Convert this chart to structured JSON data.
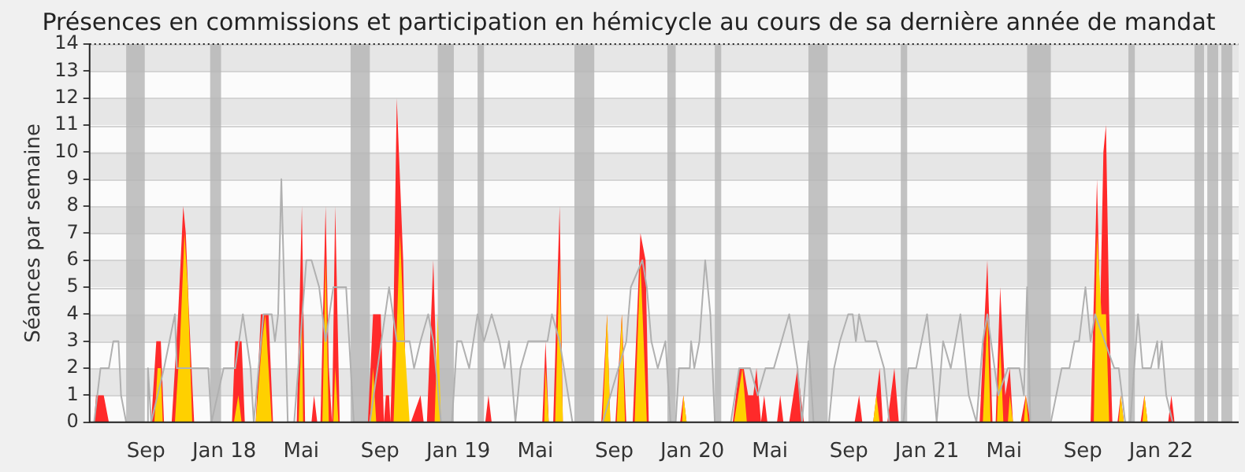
{
  "chart_data": {
    "type": "area",
    "title": "Présences en commissions et participation en hémicycle au cours de sa dernière année de mandat",
    "ylabel": "Séances par semaine",
    "xlim": [
      "2017-06-05",
      "2022-05-02"
    ],
    "xticks": [
      {
        "value": "2017-09-01",
        "label": "Sep"
      },
      {
        "value": "2018-01-01",
        "label": "Jan 18"
      },
      {
        "value": "2018-05-01",
        "label": "Mai"
      },
      {
        "value": "2018-09-01",
        "label": "Sep"
      },
      {
        "value": "2019-01-01",
        "label": "Jan 19"
      },
      {
        "value": "2019-05-01",
        "label": "Mai"
      },
      {
        "value": "2019-09-01",
        "label": "Sep"
      },
      {
        "value": "2020-01-01",
        "label": "Jan 20"
      },
      {
        "value": "2020-05-01",
        "label": "Mai"
      },
      {
        "value": "2020-09-01",
        "label": "Sep"
      },
      {
        "value": "2021-01-01",
        "label": "Jan 21"
      },
      {
        "value": "2021-05-01",
        "label": "Mai"
      },
      {
        "value": "2021-09-01",
        "label": "Sep"
      },
      {
        "value": "2022-01-01",
        "label": "Jan 22"
      }
    ],
    "ylim": [
      0,
      14
    ],
    "yticks": [
      0,
      1,
      2,
      3,
      4,
      5,
      6,
      7,
      8,
      9,
      10,
      11,
      12,
      13,
      14
    ],
    "grid": "y",
    "marker": "none",
    "line_style": "solid",
    "bands": [
      {
        "axis": "x",
        "from": "2017-08-01",
        "to": "2017-08-30",
        "color": "#b4b4b4"
      },
      {
        "axis": "x",
        "from": "2017-12-10",
        "to": "2017-12-27",
        "color": "#b4b4b4"
      },
      {
        "axis": "x",
        "from": "2018-07-17",
        "to": "2018-08-16",
        "color": "#b4b4b4"
      },
      {
        "axis": "x",
        "from": "2018-11-30",
        "to": "2018-12-25",
        "color": "#b4b4b4"
      },
      {
        "axis": "x",
        "from": "2019-01-31",
        "to": "2019-02-10",
        "color": "#b4b4b4"
      },
      {
        "axis": "x",
        "from": "2019-07-01",
        "to": "2019-08-01",
        "color": "#b4b4b4"
      },
      {
        "axis": "x",
        "from": "2019-11-23",
        "to": "2019-12-06",
        "color": "#b4b4b4"
      },
      {
        "axis": "x",
        "from": "2020-02-05",
        "to": "2020-02-15",
        "color": "#b4b4b4"
      },
      {
        "axis": "x",
        "from": "2020-06-30",
        "to": "2020-07-30",
        "color": "#b4b4b4"
      },
      {
        "axis": "x",
        "from": "2020-11-21",
        "to": "2020-12-01",
        "color": "#b4b4b4"
      },
      {
        "axis": "x",
        "from": "2021-06-06",
        "to": "2021-07-13",
        "color": "#b4b4b4"
      },
      {
        "axis": "x",
        "from": "2021-11-11",
        "to": "2021-11-21",
        "color": "#b4b4b4"
      },
      {
        "axis": "x",
        "from": "2022-02-22",
        "to": "2022-03-09",
        "color": "#b4b4b4"
      },
      {
        "axis": "x",
        "from": "2022-03-14",
        "to": "2022-03-31",
        "color": "#b4b4b4"
      },
      {
        "axis": "x",
        "from": "2022-04-05",
        "to": "2022-04-22",
        "color": "#b4b4b4"
      }
    ],
    "series": [
      {
        "type": "line",
        "color": "#b0b0b0",
        "x": [
          "2017-06-12",
          "2017-06-22",
          "2017-07-05",
          "2017-07-12",
          "2017-07-20",
          "2017-07-24",
          "2017-08-01",
          "2017-09-02",
          "2017-09-04",
          "2017-09-09",
          "2017-09-29",
          "2017-10-16",
          "2017-10-19",
          "2017-11-17",
          "2017-12-07",
          "2017-12-12",
          "2017-12-31",
          "2018-01-18",
          "2018-01-30",
          "2018-02-11",
          "2018-02-16",
          "2018-03-03",
          "2018-03-16",
          "2018-03-21",
          "2018-03-26",
          "2018-03-31",
          "2018-04-10",
          "2018-04-20",
          "2018-05-09",
          "2018-05-17",
          "2018-05-29",
          "2018-06-08",
          "2018-06-20",
          "2018-07-02",
          "2018-07-10",
          "2018-07-22",
          "2018-08-16",
          "2018-09-15",
          "2018-09-27",
          "2018-10-17",
          "2018-10-24",
          "2018-11-03",
          "2018-11-15",
          "2018-11-23",
          "2018-12-05",
          "2018-12-22",
          "2018-12-30",
          "2019-01-06",
          "2019-01-18",
          "2019-01-31",
          "2019-02-10",
          "2019-02-22",
          "2019-03-06",
          "2019-03-14",
          "2019-03-21",
          "2019-03-31",
          "2019-04-08",
          "2019-04-20",
          "2019-05-02",
          "2019-05-20",
          "2019-05-27",
          "2019-06-08",
          "2019-06-28",
          "2019-08-02",
          "2019-08-14",
          "2019-09-20",
          "2019-09-27",
          "2019-10-15",
          "2019-10-22",
          "2019-10-29",
          "2019-11-08",
          "2019-11-20",
          "2019-11-28",
          "2019-12-06",
          "2019-12-11",
          "2019-12-28",
          "2019-12-30",
          "2020-01-04",
          "2020-01-12",
          "2020-01-21",
          "2020-01-29",
          "2020-02-05",
          "2020-03-01",
          "2020-03-14",
          "2020-03-23",
          "2020-03-31",
          "2020-04-12",
          "2020-04-24",
          "2020-05-07",
          "2020-05-19",
          "2020-05-31",
          "2020-06-13",
          "2020-06-20",
          "2020-06-30",
          "2020-07-08",
          "2020-08-01",
          "2020-08-09",
          "2020-08-18",
          "2020-08-31",
          "2020-09-07",
          "2020-09-12",
          "2020-09-17",
          "2020-09-27",
          "2020-10-14",
          "2020-10-26",
          "2020-11-03",
          "2020-11-25",
          "2020-12-03",
          "2020-12-15",
          "2021-01-01",
          "2021-01-09",
          "2021-01-16",
          "2021-01-26",
          "2021-02-07",
          "2021-02-22",
          "2021-03-07",
          "2021-03-19",
          "2021-03-29",
          "2021-04-05",
          "2021-04-22",
          "2021-05-07",
          "2021-05-25",
          "2021-06-01",
          "2021-06-06",
          "2021-06-11",
          "2021-07-13",
          "2021-07-30",
          "2021-08-11",
          "2021-08-19",
          "2021-08-26",
          "2021-09-05",
          "2021-09-13",
          "2021-09-20",
          "2021-10-20",
          "2021-10-27",
          "2021-11-06",
          "2021-11-14",
          "2021-11-26",
          "2021-12-03",
          "2021-12-16",
          "2021-12-26",
          "2021-12-28",
          "2022-01-02",
          "2022-01-09",
          "2022-01-19"
        ],
        "values": [
          0,
          2,
          2,
          3,
          3,
          1,
          0,
          0,
          2,
          0,
          2,
          4,
          2,
          2,
          2,
          0,
          2,
          2,
          4,
          2,
          0,
          4,
          4,
          3,
          4,
          9,
          0,
          0,
          6,
          6,
          5,
          3,
          5,
          5,
          5,
          0,
          0,
          5,
          3,
          3,
          2,
          3,
          4,
          3,
          0,
          0,
          3,
          3,
          2,
          4,
          3,
          4,
          3,
          2,
          3,
          0,
          2,
          3,
          3,
          3,
          4,
          3,
          0,
          0,
          0,
          3,
          5,
          6,
          5,
          3,
          2,
          3,
          0,
          0,
          2,
          2,
          3,
          2,
          3,
          6,
          4,
          0,
          0,
          2,
          2,
          2,
          1,
          2,
          2,
          3,
          4,
          2,
          0,
          3,
          0,
          0,
          2,
          3,
          4,
          4,
          3,
          4,
          3,
          3,
          2,
          0,
          0,
          2,
          2,
          4,
          2,
          0,
          3,
          2,
          4,
          1,
          0,
          3,
          4,
          1,
          2,
          2,
          1,
          5,
          0,
          0,
          2,
          2,
          3,
          3,
          5,
          3,
          4,
          2,
          2,
          0,
          0,
          4,
          2,
          2,
          3,
          2,
          3,
          1,
          0
        ]
      },
      {
        "color": "#ff2a2a",
        "x": [
          "2017-06-12",
          "2017-06-15",
          "2017-06-27",
          "2017-07-05",
          "2017-09-09",
          "2017-09-17",
          "2017-09-24",
          "2017-09-29",
          "2017-10-11",
          "2017-10-21",
          "2017-10-29",
          "2017-11-02",
          "2017-11-07",
          "2017-11-15",
          "2018-01-13",
          "2018-01-18",
          "2018-01-28",
          "2018-02-02",
          "2018-02-19",
          "2018-02-27",
          "2018-03-11",
          "2018-03-18",
          "2018-04-24",
          "2018-05-02",
          "2018-05-07",
          "2018-05-17",
          "2018-05-21",
          "2018-05-26",
          "2018-05-31",
          "2018-06-08",
          "2018-06-13",
          "2018-06-18",
          "2018-06-23",
          "2018-06-30",
          "2018-08-13",
          "2018-08-21",
          "2018-09-02",
          "2018-09-07",
          "2018-09-10",
          "2018-09-15",
          "2018-09-17",
          "2018-09-22",
          "2018-09-27",
          "2018-10-07",
          "2018-10-12",
          "2018-10-19",
          "2018-11-03",
          "2018-11-08",
          "2018-11-13",
          "2018-11-23",
          "2018-11-30",
          "2018-12-05",
          "2019-02-12",
          "2019-02-17",
          "2019-02-22",
          "2019-05-12",
          "2019-05-17",
          "2019-05-22",
          "2019-05-29",
          "2019-06-08",
          "2019-06-13",
          "2019-08-12",
          "2019-08-21",
          "2019-08-26",
          "2019-09-03",
          "2019-09-13",
          "2019-09-20",
          "2019-09-30",
          "2019-10-12",
          "2019-10-20",
          "2019-10-25",
          "2019-12-13",
          "2019-12-18",
          "2019-12-23",
          "2020-03-04",
          "2020-03-14",
          "2020-03-21",
          "2020-03-28",
          "2020-04-05",
          "2020-04-10",
          "2020-04-17",
          "2020-04-22",
          "2020-04-27",
          "2020-05-12",
          "2020-05-17",
          "2020-05-22",
          "2020-05-31",
          "2020-06-13",
          "2020-06-23",
          "2020-09-10",
          "2020-09-17",
          "2020-09-22",
          "2020-10-09",
          "2020-10-19",
          "2020-10-24",
          "2020-10-31",
          "2020-11-11",
          "2020-11-18",
          "2021-03-24",
          "2021-04-05",
          "2021-04-13",
          "2021-04-18",
          "2021-04-25",
          "2021-05-03",
          "2021-05-10",
          "2021-05-15",
          "2021-05-27",
          "2021-06-04",
          "2021-06-11",
          "2021-09-13",
          "2021-09-23",
          "2021-09-28",
          "2021-10-03",
          "2021-10-07",
          "2021-10-12",
          "2021-10-17",
          "2021-10-25",
          "2021-10-30",
          "2021-11-04",
          "2021-11-30",
          "2021-12-06",
          "2021-12-11",
          "2022-01-12",
          "2022-01-17",
          "2022-01-22"
        ],
        "values": [
          0,
          1,
          1,
          0,
          0,
          3,
          3,
          0,
          0,
          4,
          8,
          7,
          4,
          0,
          0,
          3,
          3,
          0,
          0,
          4,
          4,
          0,
          0,
          8,
          0,
          0,
          1,
          0,
          0,
          8,
          2,
          0,
          8,
          0,
          0,
          4,
          4,
          0,
          1,
          1,
          0,
          4,
          12,
          6,
          0,
          0,
          1,
          0,
          0,
          6,
          0,
          0,
          0,
          1,
          0,
          0,
          3,
          0,
          0,
          8,
          0,
          0,
          4,
          0,
          0,
          4,
          0,
          0,
          7,
          6,
          0,
          0,
          1,
          0,
          0,
          2,
          2,
          1,
          1,
          2,
          0,
          1,
          0,
          0,
          1,
          0,
          0,
          2,
          0,
          0,
          1,
          0,
          0,
          2,
          0,
          0,
          2,
          0,
          0,
          6,
          0,
          0,
          5,
          1,
          2,
          0,
          0,
          1,
          0,
          0,
          9,
          4,
          10,
          11,
          4,
          0,
          0,
          1,
          0,
          0,
          1,
          0,
          0,
          1,
          0
        ]
      },
      {
        "color": "#ffd000",
        "x": [
          "2017-09-14",
          "2017-09-19",
          "2017-09-24",
          "2017-09-27",
          "2017-10-16",
          "2017-10-24",
          "2017-10-31",
          "2017-11-05",
          "2017-11-12",
          "2018-01-16",
          "2018-01-23",
          "2018-01-28",
          "2018-02-19",
          "2018-03-01",
          "2018-03-06",
          "2018-03-16",
          "2018-04-27",
          "2018-05-02",
          "2018-05-04",
          "2018-06-03",
          "2018-06-08",
          "2018-06-13",
          "2018-06-20",
          "2018-06-23",
          "2018-06-28",
          "2018-08-16",
          "2018-08-21",
          "2018-08-26",
          "2018-09-22",
          "2018-10-02",
          "2018-10-09",
          "2018-10-17",
          "2018-11-25",
          "2018-11-30",
          "2018-12-05",
          "2019-05-15",
          "2019-05-17",
          "2019-05-22",
          "2019-06-01",
          "2019-06-08",
          "2019-06-13",
          "2019-08-14",
          "2019-08-21",
          "2019-08-26",
          "2019-09-05",
          "2019-09-13",
          "2019-09-18",
          "2019-10-03",
          "2019-10-12",
          "2019-10-22",
          "2019-12-16",
          "2019-12-18",
          "2019-12-23",
          "2020-03-06",
          "2020-03-19",
          "2020-03-26",
          "2020-10-09",
          "2020-10-14",
          "2020-10-19",
          "2021-03-29",
          "2021-04-05",
          "2021-04-10",
          "2021-04-20",
          "2021-04-25",
          "2021-04-30",
          "2021-05-07",
          "2021-05-10",
          "2021-05-15",
          "2021-06-01",
          "2021-06-04",
          "2021-06-08",
          "2021-09-18",
          "2021-09-23",
          "2021-09-30",
          "2021-10-07",
          "2021-10-12",
          "2021-10-27",
          "2021-10-30",
          "2021-11-04",
          "2021-12-03",
          "2021-12-06",
          "2021-12-11"
        ],
        "values": [
          0,
          2,
          2,
          0,
          0,
          3,
          7,
          5,
          0,
          0,
          1,
          0,
          0,
          3,
          4,
          0,
          0,
          4,
          0,
          0,
          6,
          0,
          0,
          2,
          0,
          0,
          2,
          0,
          0,
          7,
          3,
          0,
          0,
          4,
          0,
          0,
          2,
          0,
          0,
          6,
          0,
          0,
          4,
          0,
          0,
          4,
          0,
          0,
          6,
          0,
          0,
          1,
          0,
          0,
          2,
          0,
          0,
          1,
          0,
          0,
          4,
          0,
          0,
          3,
          0,
          0,
          1,
          0,
          0,
          1,
          0,
          0,
          7,
          4,
          4,
          0,
          0,
          1,
          0,
          0,
          1,
          0
        ]
      }
    ]
  }
}
